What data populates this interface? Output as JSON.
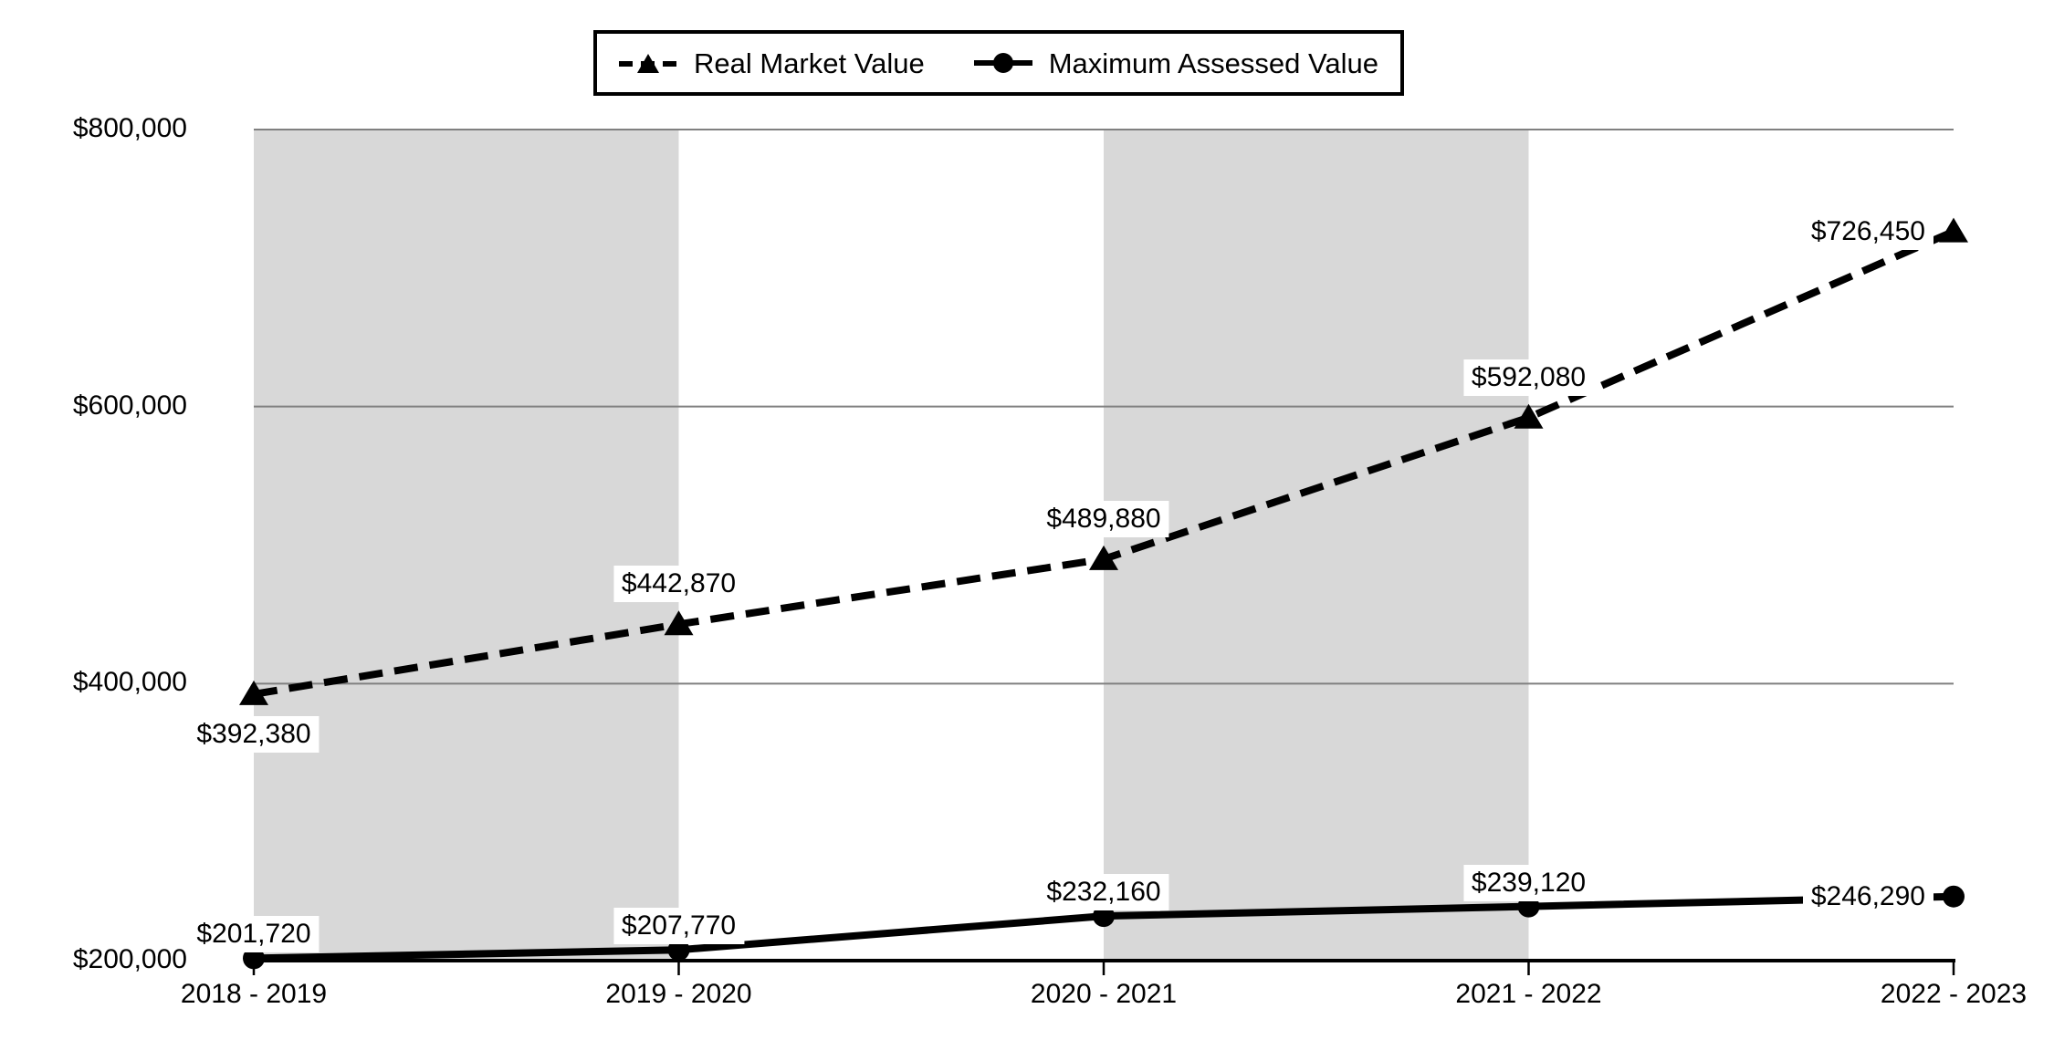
{
  "chart_data": {
    "type": "line",
    "title": "",
    "categories": [
      "2018 - 2019",
      "2019 - 2020",
      "2020 - 2021",
      "2021 - 2022",
      "2022 - 2023"
    ],
    "series": [
      {
        "name": "Real Market Value",
        "values": [
          392380,
          442870,
          489880,
          592080,
          726450
        ],
        "labels": [
          "$392,380",
          "$442,870",
          "$489,880",
          "$592,080",
          "$726,450"
        ],
        "line_style": "dashed",
        "marker": "triangle",
        "label_positions": [
          "below",
          "above",
          "above",
          "above",
          "left"
        ]
      },
      {
        "name": "Maximum Assessed Value",
        "values": [
          201720,
          207770,
          232160,
          239120,
          246290
        ],
        "labels": [
          "$201,720",
          "$207,770",
          "$232,160",
          "$239,120",
          "$246,290"
        ],
        "line_style": "solid",
        "marker": "circle",
        "label_positions": [
          "above",
          "above",
          "above",
          "above",
          "left"
        ]
      }
    ],
    "y_axis": {
      "min": 200000,
      "max": 800000,
      "step": 200000,
      "tick_labels": [
        "$200,000",
        "$400,000",
        "$600,000",
        "$800,000"
      ]
    },
    "x_axis": {
      "label": ""
    },
    "legend_position": "top-center",
    "grid": "horizontal",
    "band_intervals": [
      [
        0,
        1
      ],
      [
        2,
        3
      ]
    ],
    "colors": {
      "series": "#000000",
      "band": "#d8d8d8",
      "gridline": "#808080",
      "axis": "#000000",
      "label_bg": "#ffffff",
      "text": "#000000"
    }
  }
}
